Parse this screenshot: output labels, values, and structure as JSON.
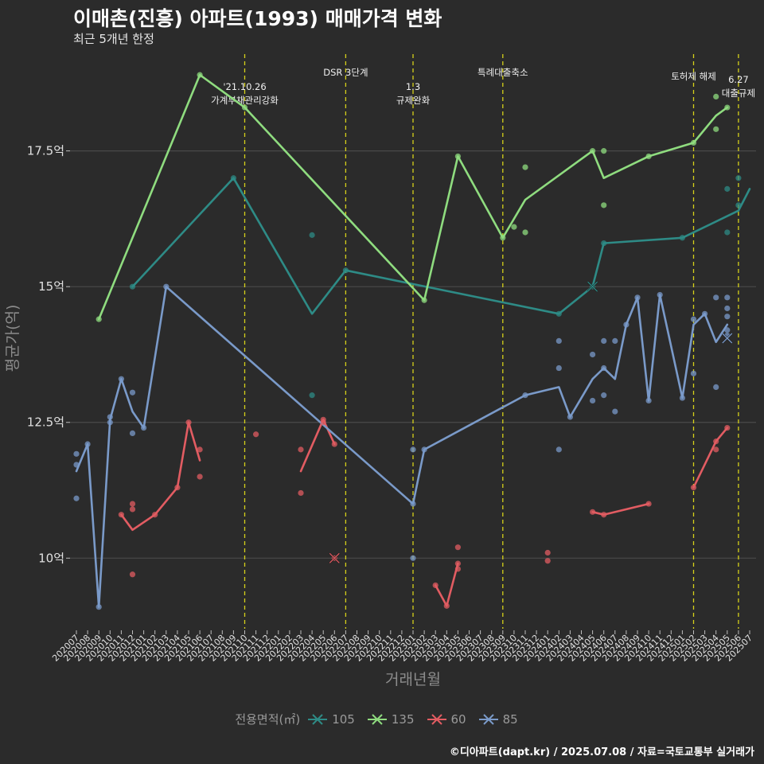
{
  "title": "이매촌(진흥) 아파트(1993) 매매가격 변화",
  "subtitle": "최근 5개년 한정",
  "caption": "©디아파트(dapt.kr) / 2025.07.08 / 자료=국토교통부 실거래가",
  "colors": {
    "background": "#2b2b2b",
    "grid": "#4a4a4a",
    "event_line": "#d6d11a",
    "s105": "#2e8b86",
    "s135": "#8fdc7f",
    "s60": "#e25c62",
    "s85": "#7a9ac9"
  },
  "chart_data": {
    "type": "line",
    "xlabel": "거래년월",
    "ylabel": "평균가(억)",
    "ylim": [
      8.7,
      19.4
    ],
    "y_ticks": [
      {
        "value": 10,
        "label": "10억"
      },
      {
        "value": 12.5,
        "label": "12.5억"
      },
      {
        "value": 15,
        "label": "15억"
      },
      {
        "value": 17.5,
        "label": "17.5억"
      }
    ],
    "x_categories": [
      "202007",
      "202008",
      "202009",
      "202010",
      "202011",
      "202012",
      "202101",
      "202102",
      "202103",
      "202104",
      "202105",
      "202106",
      "202107",
      "202108",
      "202109",
      "202110",
      "202111",
      "202112",
      "202201",
      "202202",
      "202203",
      "202204",
      "202205",
      "202206",
      "202207",
      "202208",
      "202209",
      "202210",
      "202211",
      "202212",
      "202301",
      "202302",
      "202303",
      "202304",
      "202305",
      "202306",
      "202307",
      "202308",
      "202309",
      "202310",
      "202311",
      "202312",
      "202401",
      "202402",
      "202403",
      "202404",
      "202405",
      "202406",
      "202407",
      "202408",
      "202409",
      "202410",
      "202411",
      "202412",
      "202501",
      "202502",
      "202503",
      "202504",
      "202505",
      "202506",
      "202507"
    ],
    "legend_title": "전용면적(㎡)",
    "events": [
      {
        "x": "202110",
        "lines": [
          "'21.10.26",
          "가계부채관리강화"
        ],
        "row": 1
      },
      {
        "x": "202207",
        "lines": [
          "DSR 3단계"
        ],
        "row": 2
      },
      {
        "x": "202301",
        "lines": [
          "1.3",
          "규제완화"
        ],
        "row": 1
      },
      {
        "x": "202309",
        "lines": [
          "특례대출축소"
        ],
        "row": 2
      },
      {
        "x": "202502",
        "lines": [
          "토허제 해제"
        ],
        "row": 0
      },
      {
        "x": "202506",
        "lines": [
          "6.27",
          "대출규제"
        ],
        "row": 3
      }
    ],
    "series": [
      {
        "name": "105",
        "color_key": "s105",
        "line": [
          [
            "202012",
            15.0
          ],
          [
            "202109",
            17.0
          ],
          [
            "202204",
            14.5
          ],
          [
            "202207",
            15.3
          ],
          [
            "202402",
            14.5
          ],
          [
            "202405",
            15.0
          ],
          [
            "202406",
            15.8
          ],
          [
            "202501",
            15.9
          ],
          [
            "202506",
            16.4
          ],
          [
            "202507",
            16.8
          ]
        ],
        "points": [
          [
            "202012",
            15.0
          ],
          [
            "202109",
            17.0
          ],
          [
            "202204",
            15.95
          ],
          [
            "202204",
            13.0
          ],
          [
            "202207",
            15.3
          ],
          [
            "202402",
            14.5
          ],
          [
            "202405",
            15.0
          ],
          [
            "202406",
            15.8
          ],
          [
            "202501",
            15.9
          ],
          [
            "202505",
            16.8
          ],
          [
            "202505",
            16.0
          ],
          [
            "202506",
            17.0
          ],
          [
            "202506",
            16.5
          ]
        ],
        "x_marks": [
          [
            "202405",
            15.0
          ]
        ]
      },
      {
        "name": "135",
        "color_key": "s135",
        "line": [
          [
            "202009",
            14.4
          ],
          [
            "202106",
            18.9
          ],
          [
            "202110",
            18.3
          ],
          [
            "202302",
            14.75
          ],
          [
            "202305",
            17.4
          ],
          [
            "202309",
            15.9
          ],
          [
            "202311",
            16.6
          ],
          [
            "202405",
            17.5
          ],
          [
            "202406",
            17.0
          ],
          [
            "202410",
            17.4
          ],
          [
            "202502",
            17.65
          ],
          [
            "202504",
            18.15
          ],
          [
            "202505",
            18.3
          ]
        ],
        "points": [
          [
            "202009",
            14.4
          ],
          [
            "202106",
            18.9
          ],
          [
            "202110",
            18.3
          ],
          [
            "202302",
            14.75
          ],
          [
            "202305",
            17.4
          ],
          [
            "202309",
            15.9
          ],
          [
            "202310",
            16.1
          ],
          [
            "202311",
            17.2
          ],
          [
            "202311",
            16.0
          ],
          [
            "202405",
            17.5
          ],
          [
            "202406",
            17.5
          ],
          [
            "202406",
            16.5
          ],
          [
            "202410",
            17.4
          ],
          [
            "202502",
            17.65
          ],
          [
            "202504",
            18.5
          ],
          [
            "202504",
            17.9
          ],
          [
            "202505",
            18.3
          ]
        ],
        "x_marks": []
      },
      {
        "name": "60",
        "color_key": "s60",
        "line": [
          [
            "202011",
            10.8
          ],
          [
            "202012",
            10.52
          ],
          [
            "202102",
            10.8
          ],
          [
            "202104",
            11.3
          ],
          [
            "202105",
            12.5
          ],
          [
            "202106",
            11.8
          ]
        ],
        "points": [
          [
            "202011",
            10.8
          ],
          [
            "202012",
            11.0
          ],
          [
            "202012",
            10.9
          ],
          [
            "202012",
            9.7
          ],
          [
            "202102",
            10.8
          ],
          [
            "202104",
            11.3
          ],
          [
            "202105",
            12.5
          ],
          [
            "202106",
            12.0
          ],
          [
            "202106",
            11.5
          ],
          [
            "202111",
            12.28
          ],
          [
            "202203",
            12.0
          ],
          [
            "202203",
            11.2
          ],
          [
            "202205",
            12.55
          ],
          [
            "202205",
            12.5
          ],
          [
            "202206",
            12.1
          ],
          [
            "202206",
            10.0
          ],
          [
            "202303",
            9.5
          ],
          [
            "202304",
            9.12
          ],
          [
            "202305",
            10.2
          ],
          [
            "202305",
            9.9
          ],
          [
            "202305",
            9.8
          ],
          [
            "202401",
            10.1
          ],
          [
            "202401",
            9.95
          ],
          [
            "202405",
            10.85
          ],
          [
            "202406",
            10.8
          ],
          [
            "202410",
            11.0
          ],
          [
            "202502",
            11.3
          ],
          [
            "202504",
            12.15
          ],
          [
            "202504",
            12.0
          ],
          [
            "202505",
            12.4
          ]
        ],
        "x_marks": [
          [
            "202206",
            10.0
          ]
        ],
        "extra_lines": [
          [
            [
              "202203",
              11.6
            ],
            [
              "202205",
              12.55
            ],
            [
              "202206",
              12.1
            ]
          ],
          [
            [
              "202303",
              9.5
            ],
            [
              "202304",
              9.12
            ],
            [
              "202305",
              9.9
            ]
          ],
          [
            [
              "202405",
              10.85
            ],
            [
              "202406",
              10.8
            ],
            [
              "202410",
              11.0
            ]
          ],
          [
            [
              "202502",
              11.3
            ],
            [
              "202504",
              12.15
            ],
            [
              "202505",
              12.4
            ]
          ]
        ]
      },
      {
        "name": "85",
        "color_key": "s85",
        "line": [
          [
            "202007",
            11.6
          ],
          [
            "202008",
            12.1
          ],
          [
            "202009",
            9.1
          ],
          [
            "202010",
            12.55
          ],
          [
            "202011",
            13.3
          ],
          [
            "202012",
            12.7
          ],
          [
            "202101",
            12.4
          ],
          [
            "202103",
            15.0
          ],
          [
            "202301",
            11.0
          ],
          [
            "202302",
            12.0
          ],
          [
            "202311",
            13.0
          ],
          [
            "202402",
            13.15
          ],
          [
            "202403",
            12.6
          ],
          [
            "202405",
            13.3
          ],
          [
            "202406",
            13.5
          ],
          [
            "202407",
            13.3
          ],
          [
            "202408",
            14.3
          ],
          [
            "202409",
            14.8
          ],
          [
            "202410",
            12.9
          ],
          [
            "202411",
            14.85
          ],
          [
            "202501",
            12.95
          ],
          [
            "202502",
            14.3
          ],
          [
            "202503",
            14.5
          ],
          [
            "202504",
            13.98
          ],
          [
            "202505",
            14.3
          ]
        ],
        "points": [
          [
            "202007",
            11.92
          ],
          [
            "202007",
            11.72
          ],
          [
            "202007",
            11.1
          ],
          [
            "202008",
            12.1
          ],
          [
            "202009",
            9.1
          ],
          [
            "202010",
            12.6
          ],
          [
            "202010",
            12.5
          ],
          [
            "202011",
            13.3
          ],
          [
            "202012",
            13.05
          ],
          [
            "202012",
            12.3
          ],
          [
            "202101",
            12.4
          ],
          [
            "202103",
            15.0
          ],
          [
            "202301",
            12.0
          ],
          [
            "202301",
            11.0
          ],
          [
            "202301",
            10.0
          ],
          [
            "202302",
            12.0
          ],
          [
            "202311",
            13.0
          ],
          [
            "202402",
            14.0
          ],
          [
            "202402",
            13.5
          ],
          [
            "202402",
            12.0
          ],
          [
            "202403",
            12.6
          ],
          [
            "202405",
            13.75
          ],
          [
            "202405",
            12.9
          ],
          [
            "202406",
            14.0
          ],
          [
            "202406",
            13.5
          ],
          [
            "202406",
            13.0
          ],
          [
            "202407",
            14.0
          ],
          [
            "202407",
            12.7
          ],
          [
            "202408",
            14.3
          ],
          [
            "202409",
            14.8
          ],
          [
            "202410",
            12.9
          ],
          [
            "202411",
            14.85
          ],
          [
            "202501",
            12.95
          ],
          [
            "202502",
            14.4
          ],
          [
            "202502",
            13.4
          ],
          [
            "202503",
            14.5
          ],
          [
            "202504",
            14.8
          ],
          [
            "202504",
            13.15
          ],
          [
            "202505",
            14.8
          ],
          [
            "202505",
            14.6
          ],
          [
            "202505",
            14.45
          ],
          [
            "202505",
            14.2
          ],
          [
            "202505",
            14.1
          ]
        ],
        "x_marks": [
          [
            "202505",
            14.05
          ]
        ]
      }
    ]
  }
}
